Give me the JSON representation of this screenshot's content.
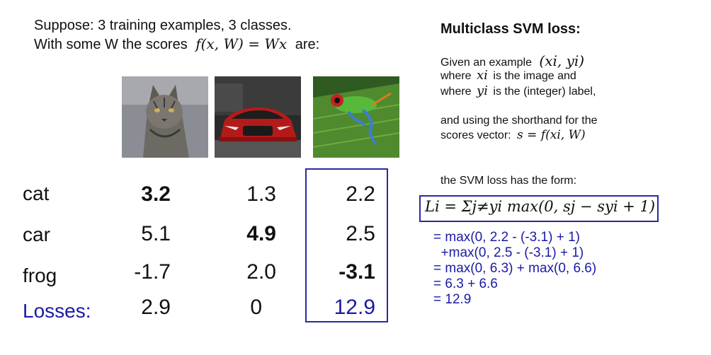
{
  "intro": {
    "line1": "Suppose: 3 training examples, 3 classes.",
    "line2_prefix": "With some W the scores",
    "line2_formula": "f(x, W) = Wx",
    "line2_suffix": "are:"
  },
  "images": [
    {
      "icon": "cat-photo",
      "label": "cat"
    },
    {
      "icon": "car-photo",
      "label": "car"
    },
    {
      "icon": "frog-photo",
      "label": "frog"
    }
  ],
  "table": {
    "rows": [
      {
        "class": "cat",
        "scores": [
          "3.2",
          "1.3",
          "2.2"
        ]
      },
      {
        "class": "car",
        "scores": [
          "5.1",
          "4.9",
          "2.5"
        ]
      },
      {
        "class": "frog",
        "scores": [
          "-1.7",
          "2.0",
          "-3.1"
        ]
      }
    ],
    "losses": {
      "label": "Losses:",
      "values": [
        "2.9",
        "0",
        "12.9"
      ]
    }
  },
  "right": {
    "title": "Multiclass SVM loss:",
    "line1_text": "Given an example",
    "line1_math": "(xi, yi)",
    "line2_prefix": "where",
    "line2_math": "xi",
    "line2_suffix": "is the image and",
    "line3_prefix": "where",
    "line3_math": "yi",
    "line3_suffix": "is the (integer) label,",
    "line4": "and using the shorthand for the",
    "line5_prefix": "scores vector:",
    "line5_math": "s = f(xi, W)",
    "line6": "the SVM loss has the form:",
    "formula": "Li = Σj≠yi max(0, sj − syi + 1)",
    "steps": [
      "= max(0, 2.2 - (-3.1) + 1)",
      "  +max(0, 2.5 - (-3.1) + 1)",
      "= max(0, 6.3) + max(0, 6.6)",
      "= 6.3 + 6.6",
      "= 12.9"
    ]
  },
  "colors": {
    "accent": "#2a2aa0",
    "text": "#111111"
  }
}
